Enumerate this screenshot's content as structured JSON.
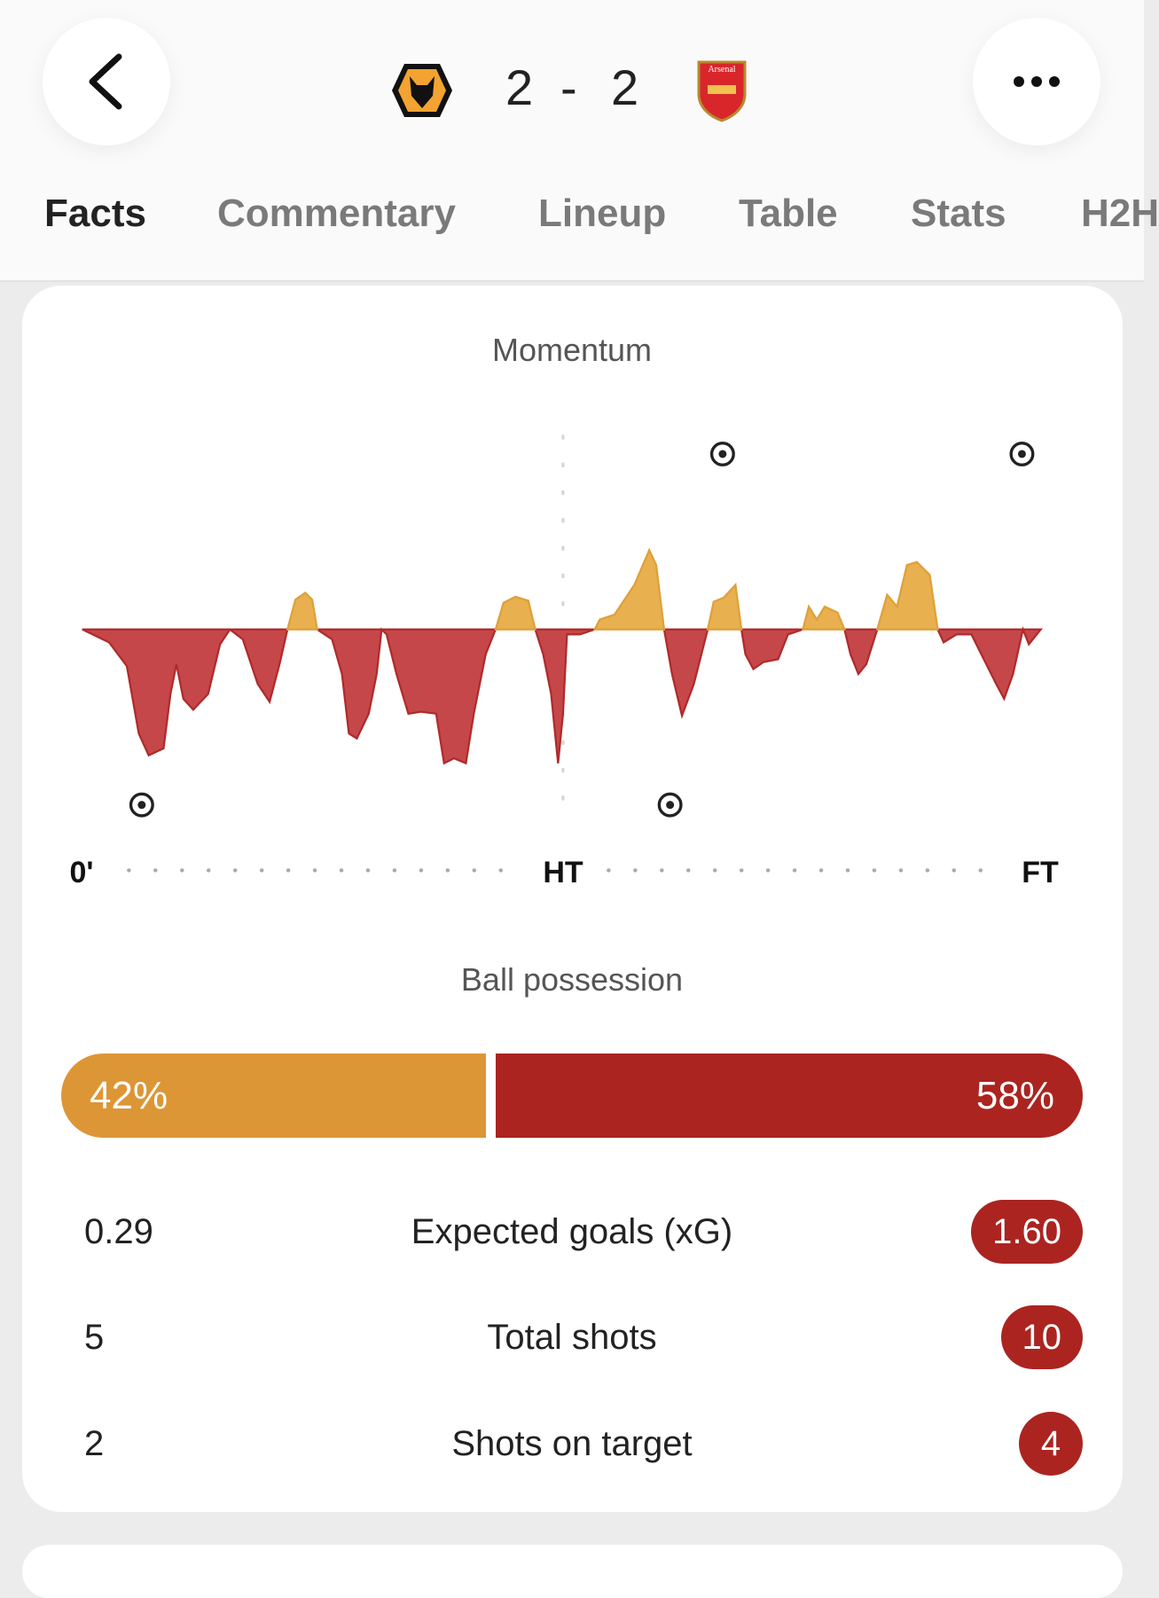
{
  "header": {
    "score": {
      "home": "2",
      "separator": "-",
      "away": "2"
    }
  },
  "tabs": [
    "Facts",
    "Commentary",
    "Lineup",
    "Table",
    "Stats",
    "H2H"
  ],
  "momentum": {
    "title": "Momentum",
    "timeline": [
      "0'",
      "HT",
      "FT"
    ]
  },
  "possession": {
    "title": "Ball possession",
    "home": {
      "value": 42,
      "label": "42%"
    },
    "away": {
      "value": 58,
      "label": "58%"
    }
  },
  "stats": [
    {
      "home": "0.29",
      "name": "Expected goals (xG)",
      "away": "1.60"
    },
    {
      "home": "5",
      "name": "Total shots",
      "away": "10"
    },
    {
      "home": "2",
      "name": "Shots on target",
      "away": "4"
    }
  ]
}
